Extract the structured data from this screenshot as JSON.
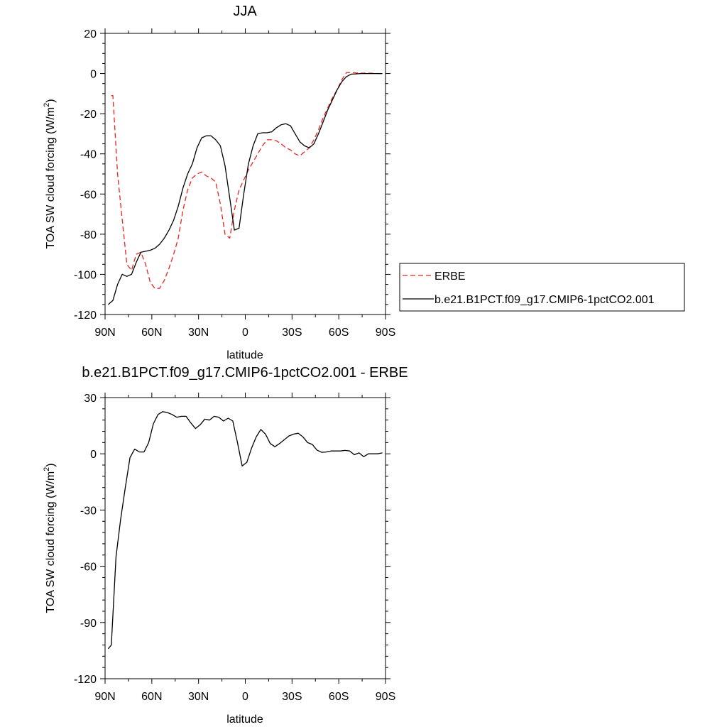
{
  "chart_data": [
    {
      "type": "line",
      "title": "JJA",
      "xlabel": "latitude",
      "ylabel": "TOA SW cloud forcing (W/m",
      "ylabel_sup": "2",
      "ylabel_close": ")",
      "xlim": [
        -90,
        90
      ],
      "ylim": [
        -120,
        20
      ],
      "x_ticks": [
        -90,
        -60,
        -30,
        0,
        30,
        60,
        90
      ],
      "x_tick_labels": [
        "90N",
        "60N",
        "30N",
        "0",
        "30S",
        "60S",
        "90S"
      ],
      "y_ticks": [
        -120,
        -100,
        -80,
        -60,
        -40,
        -20,
        0,
        20
      ],
      "y_tick_labels": [
        "-120",
        "-100",
        "-80",
        "-60",
        "-40",
        "-20",
        "0",
        "20"
      ],
      "legend_position": "right",
      "series": [
        {
          "name": "ERBE",
          "color": "#e8251f",
          "dash": "dashed",
          "x": [
            -86,
            -85,
            -82,
            -80,
            -78,
            -76,
            -73,
            -70,
            -67,
            -64,
            -61,
            -58,
            -55,
            -52,
            -49,
            -46,
            -43,
            -40,
            -37,
            -34,
            -31,
            -28,
            -25,
            -22,
            -19,
            -16,
            -13,
            -10,
            -7,
            -4,
            -1,
            2,
            5,
            8,
            11,
            14,
            17,
            20,
            23,
            26,
            29,
            32,
            35,
            38,
            41,
            44,
            47,
            50,
            53,
            56,
            59,
            62,
            65,
            68,
            71,
            74,
            77,
            80,
            83,
            86,
            88
          ],
          "y": [
            -11,
            -11,
            -50,
            -65,
            -80,
            -95,
            -98,
            -90,
            -89,
            -95,
            -104,
            -107,
            -107,
            -103,
            -97,
            -90,
            -82,
            -68,
            -58,
            -52,
            -50,
            -49,
            -51,
            -52,
            -54,
            -65,
            -80,
            -82,
            -68,
            -58,
            -53,
            -48,
            -44,
            -40,
            -36,
            -33,
            -33,
            -33.5,
            -35,
            -37,
            -38,
            -40,
            -41,
            -39,
            -37,
            -33,
            -28,
            -22,
            -17,
            -12,
            -8,
            -3,
            0.5,
            0.5,
            0.3,
            0.2,
            0.2,
            0.2,
            0.1,
            0,
            0
          ]
        },
        {
          "name": "b.e21.B1PCT.f09_g17.CMIP6-1pctCO2.001",
          "color": "#000000",
          "dash": "solid",
          "x": [
            -88,
            -85,
            -82,
            -79,
            -76,
            -73,
            -70,
            -67,
            -64,
            -61,
            -58,
            -55,
            -52,
            -49,
            -46,
            -43,
            -40,
            -37,
            -34,
            -31,
            -28,
            -25,
            -22,
            -19,
            -16,
            -13,
            -10,
            -7,
            -4,
            -1,
            2,
            5,
            8,
            11,
            14,
            17,
            20,
            23,
            26,
            29,
            32,
            35,
            38,
            41,
            44,
            47,
            50,
            53,
            56,
            59,
            62,
            65,
            68,
            71,
            74,
            77,
            80,
            83,
            86,
            88
          ],
          "y": [
            -115,
            -113,
            -105,
            -100,
            -101,
            -100,
            -94,
            -89,
            -88.5,
            -88,
            -87,
            -85,
            -82,
            -78,
            -73,
            -66,
            -57,
            -50,
            -45,
            -37,
            -32,
            -31,
            -31,
            -33,
            -36,
            -46,
            -62,
            -78,
            -77,
            -60,
            -45,
            -36,
            -30,
            -29.5,
            -29.5,
            -29,
            -27,
            -25.5,
            -25,
            -26,
            -30,
            -34,
            -36,
            -37,
            -35,
            -30,
            -24,
            -18,
            -13,
            -8,
            -4,
            -1.5,
            -0.3,
            -0.2,
            0,
            0,
            0,
            0,
            0,
            0
          ]
        }
      ]
    },
    {
      "type": "line",
      "title": "b.e21.B1PCT.f09_g17.CMIP6-1pctCO2.001 - ERBE",
      "xlabel": "latitude",
      "ylabel": "TOA SW cloud forcing (W/m",
      "ylabel_sup": "2",
      "ylabel_close": ")",
      "xlim": [
        -90,
        90
      ],
      "ylim": [
        -120,
        30
      ],
      "x_ticks": [
        -90,
        -60,
        -30,
        0,
        30,
        60,
        90
      ],
      "x_tick_labels": [
        "90N",
        "60N",
        "30N",
        "0",
        "30S",
        "60S",
        "90S"
      ],
      "y_ticks": [
        -120,
        -90,
        -60,
        -30,
        0,
        30
      ],
      "y_tick_labels": [
        "-120",
        "-90",
        "-60",
        "-30",
        "0",
        "30"
      ],
      "series": [
        {
          "color": "#000000",
          "dash": "solid",
          "x": [
            -88,
            -86,
            -83,
            -80,
            -77,
            -74,
            -71,
            -68,
            -65,
            -62,
            -59,
            -56,
            -53,
            -50,
            -47,
            -44,
            -41,
            -38,
            -35,
            -32,
            -29,
            -26,
            -23,
            -20,
            -17,
            -14,
            -11,
            -8,
            -5,
            -2,
            1,
            4,
            7,
            10,
            13,
            16,
            19,
            22,
            25,
            28,
            31,
            34,
            37,
            40,
            43,
            46,
            49,
            52,
            55,
            58,
            61,
            64,
            67,
            70,
            73,
            76,
            79,
            82,
            85,
            88
          ],
          "y": [
            -104,
            -102,
            -55,
            -35,
            -18,
            -2,
            2.5,
            1,
            1,
            6,
            16,
            21,
            22.5,
            22,
            21,
            19.5,
            20,
            20,
            16.5,
            13.5,
            15.5,
            18.5,
            18,
            20,
            19.5,
            17.5,
            19,
            17.5,
            6,
            -6.5,
            -4.5,
            3,
            9,
            13,
            10.5,
            5.5,
            3.8,
            5.5,
            7.5,
            9.5,
            10.5,
            11,
            9,
            6,
            5,
            2,
            0.8,
            1,
            1.5,
            1.5,
            1.5,
            1.8,
            1.5,
            -0.5,
            0.5,
            -1.5,
            0,
            0,
            0,
            0.5
          ]
        }
      ]
    }
  ]
}
